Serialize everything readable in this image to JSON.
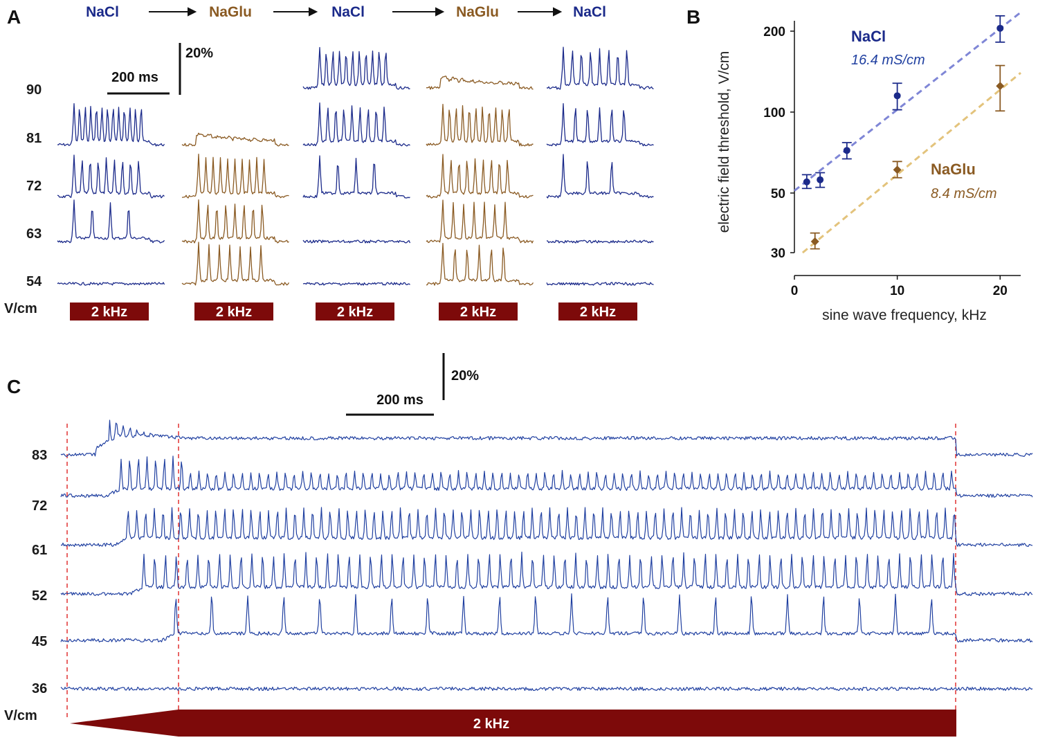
{
  "colors": {
    "nacl": "#1b2a8a",
    "naglu": "#8a5a22",
    "stim": "#7d0a0a",
    "trace_c": "#1f3fa0",
    "fit_nacl": "#7f86d6",
    "fit_naglu": "#e3c37c",
    "marker_line": "#e03030"
  },
  "panel_a": {
    "label": "A",
    "sequence": [
      {
        "name": "NaCl",
        "key": "nacl"
      },
      {
        "name": "NaGlu",
        "key": "naglu"
      },
      {
        "name": "NaCl",
        "key": "nacl"
      },
      {
        "name": "NaGlu",
        "key": "naglu"
      },
      {
        "name": "NaCl",
        "key": "nacl"
      }
    ],
    "field_levels": [
      "90",
      "81",
      "72",
      "63",
      "54"
    ],
    "unit": "V/cm",
    "scale_time": "200 ms",
    "scale_amp": "20%",
    "stim_label": "2 kHz",
    "spike_counts": [
      [
        null,
        13,
        9,
        4,
        0
      ],
      [
        null,
        "osc",
        10,
        8,
        7
      ],
      [
        11,
        9,
        4,
        0,
        0
      ],
      [
        "osc",
        11,
        9,
        7,
        6
      ],
      [
        8,
        6,
        3,
        0,
        0
      ]
    ]
  },
  "panel_b": {
    "label": "B",
    "legend": [
      {
        "name": "NaCl",
        "conductivity": "16.4 mS/cm",
        "key": "nacl"
      },
      {
        "name": "NaGlu",
        "conductivity": "8.4 mS/cm",
        "key": "naglu"
      }
    ]
  },
  "chart_data": {
    "type": "scatter",
    "xlabel": "sine wave frequency, kHz",
    "ylabel": "electric field threshold, V/cm",
    "x_ticks": [
      0,
      10,
      20
    ],
    "y_ticks": [
      30,
      50,
      100,
      200
    ],
    "xlim": [
      0,
      22
    ],
    "ylim": [
      30,
      200
    ],
    "yscale": "log",
    "series": [
      {
        "name": "NaCl",
        "marker": "circle",
        "points": [
          {
            "x": 1.2,
            "y": 55,
            "lo": 52,
            "hi": 58.5
          },
          {
            "x": 2.5,
            "y": 56,
            "lo": 52.5,
            "hi": 59.5
          },
          {
            "x": 5.1,
            "y": 72,
            "lo": 67,
            "hi": 77
          },
          {
            "x": 10,
            "y": 115,
            "lo": 102,
            "hi": 128
          },
          {
            "x": 20,
            "y": 205,
            "lo": 182,
            "hi": 228
          }
        ],
        "fit": {
          "x": [
            0,
            22
          ],
          "y": [
            51,
            235
          ]
        }
      },
      {
        "name": "NaGlu",
        "marker": "diamond",
        "points": [
          {
            "x": 2,
            "y": 33,
            "lo": 31,
            "hi": 35.5
          },
          {
            "x": 10,
            "y": 61,
            "lo": 57,
            "hi": 65.5
          },
          {
            "x": 20,
            "y": 125,
            "lo": 101,
            "hi": 149
          }
        ],
        "fit": {
          "x": [
            0.8,
            22
          ],
          "y": [
            30,
            140
          ]
        }
      }
    ]
  },
  "panel_c": {
    "label": "C",
    "field_levels": [
      "83",
      "72",
      "61",
      "52",
      "45",
      "36"
    ],
    "unit": "V/cm",
    "scale_time": "200 ms",
    "scale_amp": "20%",
    "stim_label": "2 kHz"
  }
}
